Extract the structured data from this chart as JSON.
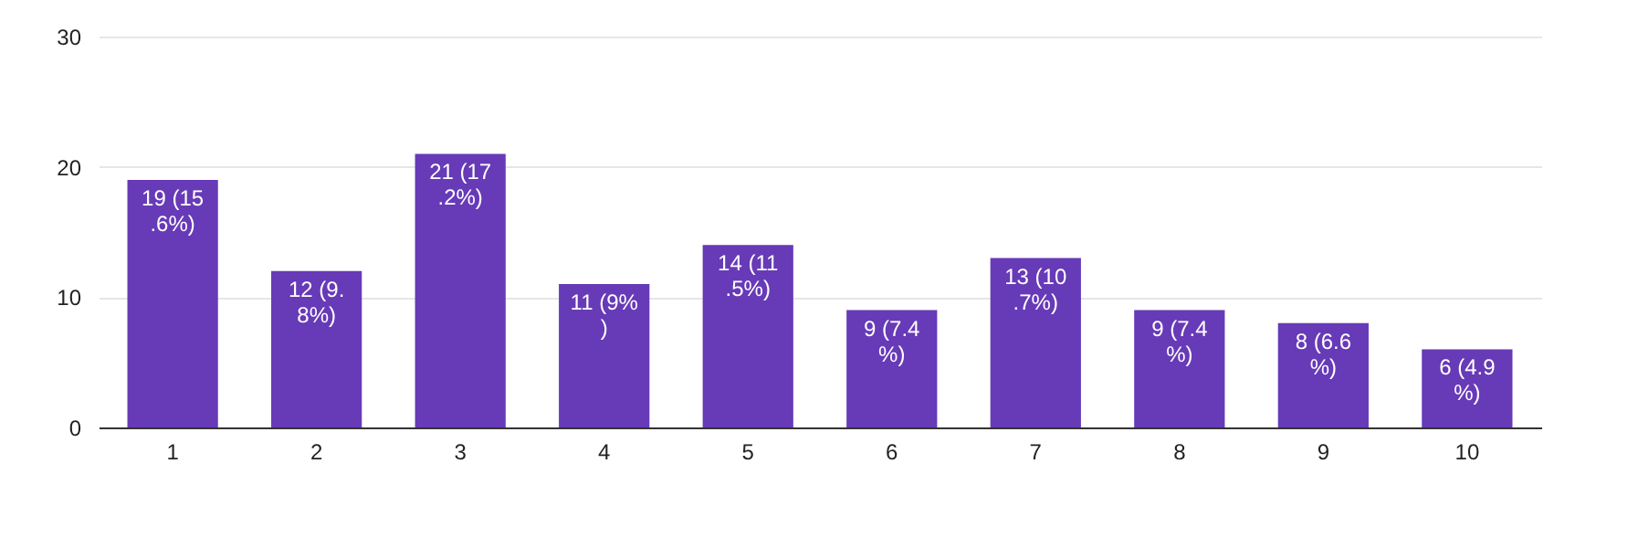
{
  "chart_data": {
    "type": "bar",
    "categories": [
      "1",
      "2",
      "3",
      "4",
      "5",
      "6",
      "7",
      "8",
      "9",
      "10"
    ],
    "values": [
      19,
      12,
      21,
      11,
      14,
      9,
      13,
      9,
      8,
      6
    ],
    "color": "#673ab7",
    "value_labels": [
      "19 (15.6%)",
      "12 (9.8%)",
      "21 (17.2%)",
      "11 (9%)",
      "14 (11.5%)",
      "9 (7.4%)",
      "13 (10.7%)",
      "9 (7.4%)",
      "8 (6.6%)",
      "6 (4.9%)"
    ],
    "ylim": [
      0,
      30
    ],
    "yticks": [
      0,
      10,
      20,
      30
    ],
    "grid": "y"
  }
}
